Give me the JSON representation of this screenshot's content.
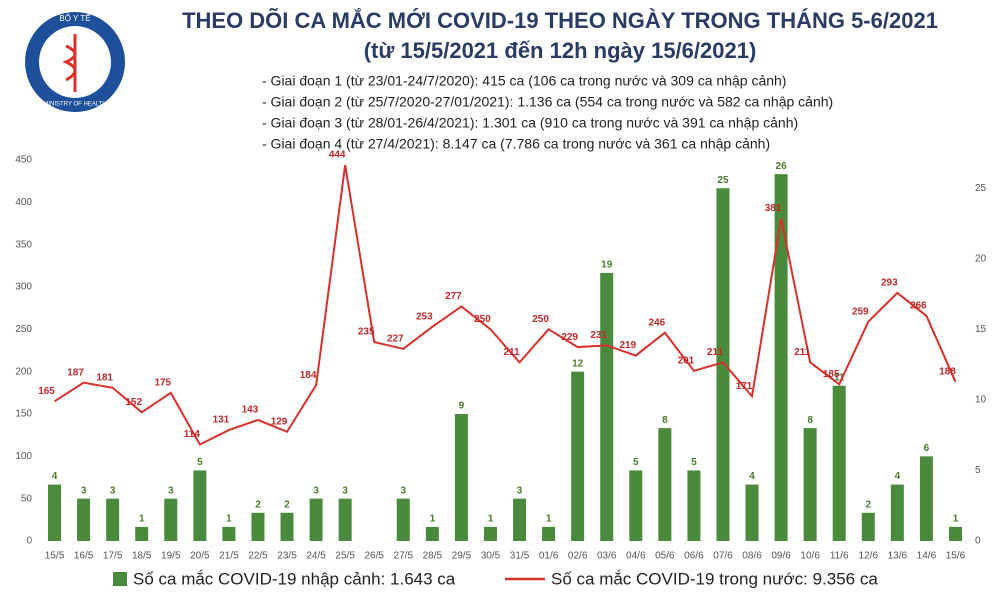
{
  "chart_data": {
    "type": "bar_line",
    "title": "THEO DÕI CA MẮC MỚI COVID-19 THEO NGÀY TRONG THÁNG 5-6/2021",
    "subtitle": "(từ 15/5/2021 đến 12h ngày 15/6/2021)",
    "logo_text": [
      "BỘ Y TẾ",
      "MINISTRY OF HEALTH"
    ],
    "notes": [
      "- Giai đoạn 1 (từ 23/01-24/7/2020): 415 ca (106 ca trong nước và 309 ca nhập cảnh)",
      "- Giai đoạn 2 (từ 25/7/2020-27/01/2021): 1.136 ca (554 ca trong nước và 582 ca nhập cảnh)",
      "- Giai đoạn 3 (từ 28/01-26/4/2021): 1.301 ca (910 ca trong nước và 391 ca nhập cảnh)",
      "- Giai đoạn 4 (từ 27/4/2021): 8.147 ca (7.786 ca trong nước và 361 ca nhập cảnh)"
    ],
    "categories": [
      "15/5",
      "16/5",
      "17/5",
      "18/5",
      "19/5",
      "20/5",
      "21/5",
      "22/5",
      "23/5",
      "24/5",
      "25/5",
      "26/5",
      "27/5",
      "28/5",
      "29/5",
      "30/5",
      "31/5",
      "01/6",
      "02/6",
      "03/6",
      "04/6",
      "05/6",
      "06/6",
      "07/6",
      "08/6",
      "09/6",
      "10/6",
      "11/6",
      "12/6",
      "13/6",
      "14/6",
      "15/6"
    ],
    "series": [
      {
        "name": "Số ca mắc COVID-19 nhập cảnh: 1.643 ca",
        "kind": "bar",
        "axis": "y2",
        "color": "#4a8a3c",
        "values": [
          4,
          3,
          3,
          1,
          3,
          5,
          1,
          2,
          2,
          3,
          3,
          null,
          3,
          1,
          9,
          1,
          3,
          1,
          12,
          19,
          5,
          8,
          5,
          25,
          4,
          26,
          8,
          11,
          2,
          4,
          6,
          1
        ]
      },
      {
        "name": "Số ca mắc COVID-19 trong nước: 9.356 ca",
        "kind": "line",
        "axis": "y",
        "color": "#d9302c",
        "values": [
          165,
          187,
          181,
          152,
          175,
          114,
          131,
          143,
          129,
          184,
          444,
          235,
          227,
          253,
          277,
          250,
          211,
          250,
          229,
          231,
          219,
          246,
          201,
          211,
          171,
          381,
          211,
          185,
          259,
          293,
          266,
          188
        ]
      }
    ],
    "ylim": [
      0,
      450
    ],
    "yticks": [
      0,
      50,
      100,
      150,
      200,
      250,
      300,
      350,
      400,
      450
    ],
    "y2lim": [
      0,
      27
    ],
    "y2ticks": [
      0,
      5,
      10,
      15,
      20,
      25
    ],
    "grid": false
  }
}
